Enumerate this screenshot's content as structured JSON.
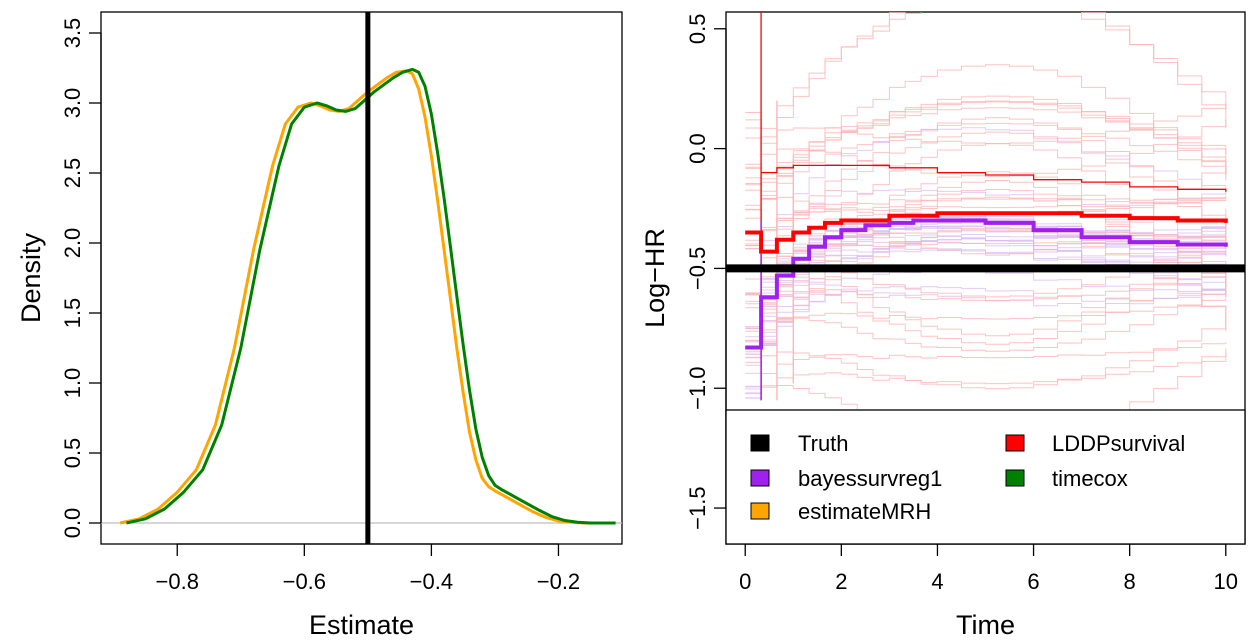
{
  "chart_data": [
    {
      "type": "line",
      "xlabel": "Estimate",
      "ylabel": "Density",
      "xlim": [
        -0.92,
        -0.1
      ],
      "ylim": [
        -0.15,
        3.65
      ],
      "xticks": [
        -0.8,
        -0.6,
        -0.4,
        -0.2
      ],
      "xtick_labels": [
        "−0.8",
        "−0.6",
        "−0.4",
        "−0.2"
      ],
      "yticks": [
        0.0,
        0.5,
        1.0,
        1.5,
        2.0,
        2.5,
        3.0,
        3.5
      ],
      "ytick_labels": [
        "0.0",
        "0.5",
        "1.0",
        "1.5",
        "2.0",
        "2.5",
        "3.0",
        "3.5"
      ],
      "vline": -0.5,
      "baseline": 0,
      "grid": false,
      "series": [
        {
          "color": "#FFA500",
          "x": [
            -0.89,
            -0.86,
            -0.83,
            -0.8,
            -0.77,
            -0.74,
            -0.71,
            -0.68,
            -0.65,
            -0.63,
            -0.61,
            -0.59,
            -0.575,
            -0.56,
            -0.545,
            -0.53,
            -0.515,
            -0.5,
            -0.485,
            -0.47,
            -0.455,
            -0.44,
            -0.43,
            -0.42,
            -0.41,
            -0.4,
            -0.39,
            -0.38,
            -0.37,
            -0.36,
            -0.35,
            -0.34,
            -0.33,
            -0.32,
            -0.31,
            -0.3,
            -0.28,
            -0.26,
            -0.24,
            -0.22,
            -0.2,
            -0.18,
            -0.16,
            -0.14,
            -0.12
          ],
          "y": [
            0.0,
            0.03,
            0.1,
            0.22,
            0.38,
            0.7,
            1.25,
            1.95,
            2.55,
            2.85,
            2.97,
            3.0,
            2.98,
            2.95,
            2.94,
            2.96,
            3.02,
            3.08,
            3.13,
            3.18,
            3.22,
            3.23,
            3.21,
            3.1,
            2.9,
            2.62,
            2.3,
            1.95,
            1.6,
            1.25,
            0.93,
            0.65,
            0.45,
            0.32,
            0.26,
            0.23,
            0.18,
            0.13,
            0.08,
            0.04,
            0.015,
            0.005,
            0.0,
            0.0,
            0.0
          ]
        },
        {
          "color": "#008000",
          "x": [
            -0.88,
            -0.85,
            -0.82,
            -0.79,
            -0.76,
            -0.73,
            -0.7,
            -0.67,
            -0.64,
            -0.62,
            -0.6,
            -0.58,
            -0.565,
            -0.55,
            -0.535,
            -0.52,
            -0.505,
            -0.49,
            -0.475,
            -0.46,
            -0.445,
            -0.43,
            -0.42,
            -0.41,
            -0.4,
            -0.39,
            -0.38,
            -0.37,
            -0.36,
            -0.35,
            -0.34,
            -0.33,
            -0.32,
            -0.31,
            -0.3,
            -0.29,
            -0.27,
            -0.25,
            -0.23,
            -0.21,
            -0.19,
            -0.17,
            -0.15,
            -0.13,
            -0.11
          ],
          "y": [
            0.0,
            0.03,
            0.1,
            0.22,
            0.38,
            0.7,
            1.25,
            1.95,
            2.55,
            2.85,
            2.97,
            3.0,
            2.98,
            2.95,
            2.94,
            2.96,
            3.02,
            3.08,
            3.13,
            3.18,
            3.22,
            3.24,
            3.22,
            3.12,
            2.92,
            2.64,
            2.32,
            1.97,
            1.62,
            1.27,
            0.95,
            0.67,
            0.47,
            0.34,
            0.27,
            0.24,
            0.19,
            0.14,
            0.09,
            0.045,
            0.018,
            0.006,
            0.0,
            0.0,
            0.0
          ]
        }
      ]
    },
    {
      "type": "line",
      "xlabel": "Time",
      "ylabel": "Log−HR",
      "xlim": [
        -0.4,
        10.4
      ],
      "ylim": [
        -1.65,
        0.57
      ],
      "xticks": [
        0,
        2,
        4,
        6,
        8,
        10
      ],
      "xtick_labels": [
        "0",
        "2",
        "4",
        "6",
        "8",
        "10"
      ],
      "yticks": [
        0.5,
        0.0,
        -0.5,
        -1.0,
        -1.5
      ],
      "ytick_labels": [
        "0.5",
        "0.0",
        "−0.5",
        "−1.0",
        "−1.5"
      ],
      "truth": -0.5,
      "grid": false,
      "legend_position": "bottom",
      "colors": {
        "truth": "#000000",
        "lddp": "#FF0000",
        "bayes": "#A020F0",
        "mrh": "#FFA500",
        "timecox": "#008000",
        "lddp_faint": "#FFB3B3",
        "bayes_faint": "#D9B3F2"
      },
      "legend": [
        {
          "label": "Truth",
          "color": "#000000"
        },
        {
          "label": "LDDPsurvival",
          "color": "#FF0000"
        },
        {
          "label": "bayessurvreg1",
          "color": "#A020F0"
        },
        {
          "label": "timecox",
          "color": "#008000"
        },
        {
          "label": "estimateMRH",
          "color": "#FFA500"
        }
      ],
      "series": [
        {
          "key": "lddp",
          "steps": [
            [
              0.0,
              -0.35
            ],
            [
              0.33,
              -0.43
            ],
            [
              0.66,
              -0.38
            ],
            [
              1.0,
              -0.35
            ],
            [
              1.33,
              -0.33
            ],
            [
              1.66,
              -0.31
            ],
            [
              2.0,
              -0.3
            ],
            [
              3.0,
              -0.28
            ],
            [
              4.0,
              -0.27
            ],
            [
              5.0,
              -0.27
            ],
            [
              6.0,
              -0.27
            ],
            [
              7.0,
              -0.28
            ],
            [
              8.0,
              -0.29
            ],
            [
              9.0,
              -0.3
            ],
            [
              10.0,
              -0.31
            ]
          ]
        },
        {
          "key": "bayes",
          "steps": [
            [
              0.0,
              -0.83
            ],
            [
              0.33,
              -0.62
            ],
            [
              0.66,
              -0.53
            ],
            [
              1.0,
              -0.46
            ],
            [
              1.33,
              -0.41
            ],
            [
              1.66,
              -0.37
            ],
            [
              2.0,
              -0.34
            ],
            [
              2.5,
              -0.32
            ],
            [
              3.0,
              -0.31
            ],
            [
              3.5,
              -0.3
            ],
            [
              4.0,
              -0.3
            ],
            [
              5.0,
              -0.31
            ],
            [
              6.0,
              -0.34
            ],
            [
              7.0,
              -0.37
            ],
            [
              8.0,
              -0.39
            ],
            [
              9.0,
              -0.4
            ],
            [
              10.0,
              -0.41
            ]
          ]
        },
        {
          "key": "lddp_band",
          "steps": [
            [
              0.33,
              -0.1
            ],
            [
              0.66,
              -0.08
            ],
            [
              1.0,
              -0.07
            ],
            [
              2.0,
              -0.07
            ],
            [
              3.0,
              -0.08
            ],
            [
              4.0,
              -0.1
            ],
            [
              5.0,
              -0.11
            ],
            [
              6.0,
              -0.13
            ],
            [
              7.0,
              -0.14
            ],
            [
              8.0,
              -0.16
            ],
            [
              9.0,
              -0.17
            ],
            [
              10.0,
              -0.18
            ]
          ]
        }
      ]
    }
  ]
}
